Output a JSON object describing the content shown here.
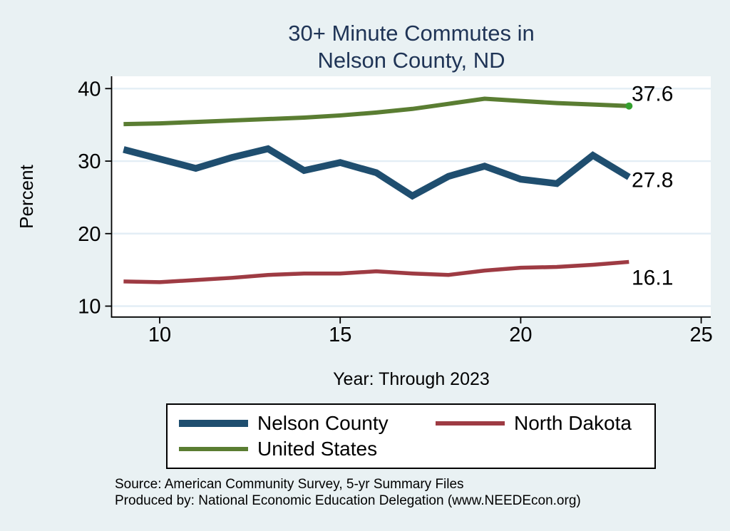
{
  "title": {
    "line1": "30+ Minute Commutes in",
    "line2": "Nelson County, ND"
  },
  "axes": {
    "y_title": "Percent",
    "x_title": "Year: Through 2023"
  },
  "chart_data": {
    "type": "line",
    "title": "30+ Minute Commutes in Nelson County, ND",
    "xlabel": "Year: Through 2023",
    "ylabel": "Percent",
    "x": [
      9,
      10,
      11,
      12,
      13,
      14,
      15,
      16,
      17,
      18,
      19,
      20,
      21,
      22,
      23
    ],
    "x_ticks": [
      10,
      15,
      20,
      25
    ],
    "y_ticks": [
      10,
      20,
      30,
      40
    ],
    "xlim": [
      8.68,
      25.26
    ],
    "ylim": [
      8.6,
      41.7
    ],
    "grid": true,
    "legend_position": "bottom",
    "background_color": "#e9f1f3",
    "plot_background_color": "#ffffff",
    "gridline_color": "#e3eef5",
    "series": [
      {
        "name": "Nelson County",
        "color": "#1f4e6f",
        "width": 9.5,
        "values": [
          31.6,
          30.3,
          29.0,
          30.5,
          31.7,
          28.7,
          29.8,
          28.4,
          25.2,
          27.9,
          29.3,
          27.5,
          26.9,
          30.8,
          27.8
        ],
        "end_label": "27.8",
        "end_marker": false
      },
      {
        "name": "North Dakota",
        "color": "#9e3b43",
        "width": 5.5,
        "values": [
          13.4,
          13.3,
          13.6,
          13.9,
          14.3,
          14.5,
          14.5,
          14.8,
          14.5,
          14.3,
          14.9,
          15.3,
          15.4,
          15.7,
          16.1
        ],
        "end_label": "16.1",
        "end_marker": false
      },
      {
        "name": "United States",
        "color": "#5a7d32",
        "width": 6,
        "values": [
          35.1,
          35.2,
          35.4,
          35.6,
          35.8,
          36.0,
          36.3,
          36.7,
          37.2,
          37.9,
          38.6,
          38.3,
          38.0,
          37.8,
          37.6
        ],
        "end_label": "37.6",
        "end_marker": true,
        "marker_color": "#35a02f"
      }
    ]
  },
  "footer": {
    "source": "Source: American Community Survey, 5-yr Summary Files",
    "produced_by": "Produced by: National Economic Education Delegation (www.NEEDEcon.org)"
  }
}
